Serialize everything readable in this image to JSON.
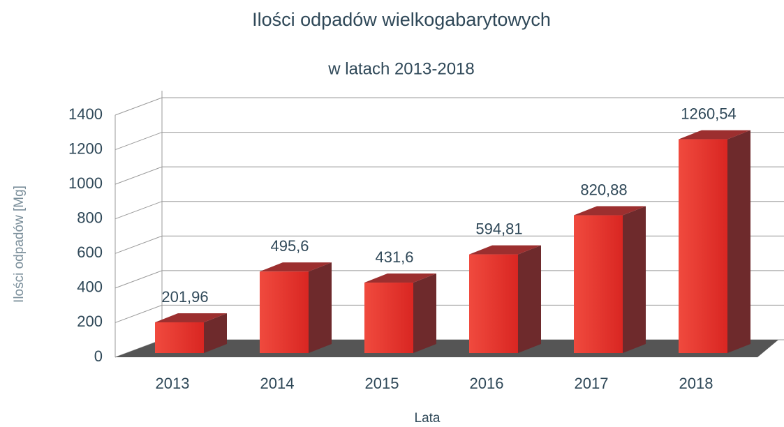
{
  "chart_data": {
    "type": "bar3d",
    "title": "Ilości odpadów wielkogabarytowych",
    "subtitle": "w latach 2013-2018",
    "y_label": "Ilości odpadów [Mg]",
    "x_label": "Lata",
    "categories": [
      "2013",
      "2014",
      "2015",
      "2016",
      "2017",
      "2018"
    ],
    "values": [
      201.96,
      495.6,
      431.6,
      594.81,
      820.88,
      1260.54
    ],
    "value_labels": [
      "201,96",
      "495,6",
      "431,6",
      "594,81",
      "820,88",
      "1260,54"
    ],
    "color": "#e8302b",
    "ylim": [
      0,
      1400
    ],
    "yticks": [
      0,
      200,
      400,
      600,
      800,
      1000,
      1200,
      1400
    ],
    "grid": true
  }
}
